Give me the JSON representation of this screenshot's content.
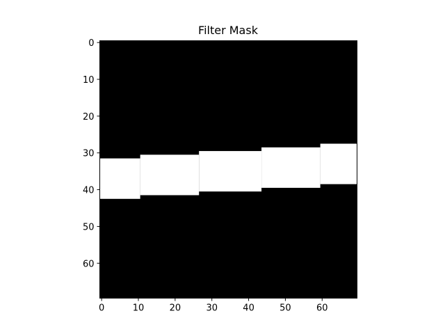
{
  "chart_data": {
    "type": "heatmap",
    "title": "Filter Mask",
    "xlabel": "",
    "ylabel": "",
    "xlim": [
      -0.5,
      69.5
    ],
    "ylim": [
      69.5,
      -0.5
    ],
    "y_inverted": true,
    "grid": false,
    "colormap": "gray",
    "x_ticks": [
      0,
      10,
      20,
      30,
      40,
      50,
      60
    ],
    "y_ticks": [
      0,
      10,
      20,
      30,
      40,
      50,
      60
    ],
    "mask_shape": [
      70,
      70
    ],
    "white_band": [
      {
        "x_start": 0,
        "x_end": 10,
        "y_start": 32,
        "y_end": 42
      },
      {
        "x_start": 11,
        "x_end": 26,
        "y_start": 31,
        "y_end": 41
      },
      {
        "x_start": 27,
        "x_end": 43,
        "y_start": 30,
        "y_end": 40
      },
      {
        "x_start": 44,
        "x_end": 59,
        "y_start": 29,
        "y_end": 39
      },
      {
        "x_start": 60,
        "x_end": 69,
        "y_start": 28,
        "y_end": 38
      }
    ],
    "colors": {
      "background": "#000000",
      "band": "#ffffff"
    }
  }
}
